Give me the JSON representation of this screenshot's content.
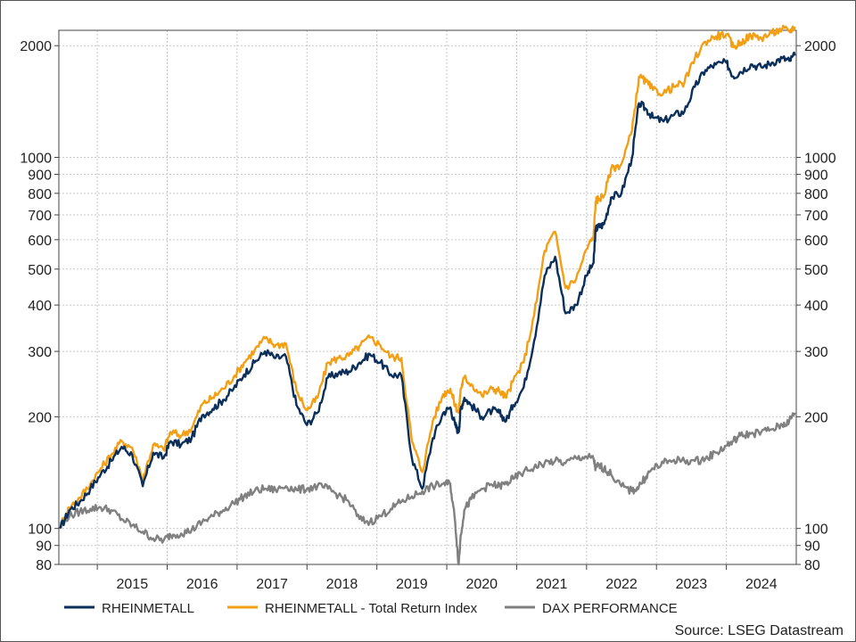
{
  "chart_data": {
    "type": "line",
    "yscale": "log",
    "ylim": [
      80,
      2200
    ],
    "y_ticks": [
      80,
      90,
      100,
      200,
      300,
      400,
      500,
      600,
      700,
      800,
      900,
      1000,
      2000
    ],
    "y_tick_labels": [
      "80",
      "90",
      "100",
      "200",
      "300",
      "400",
      "500",
      "600",
      "700",
      "800",
      "900",
      "1000",
      "2000"
    ],
    "xlim": [
      2014.45,
      2025.0
    ],
    "x_tick_labels": [
      "2015",
      "2016",
      "2017",
      "2018",
      "2019",
      "2020",
      "2021",
      "2022",
      "2023",
      "2024"
    ],
    "grid": true,
    "legend_position": "bottom",
    "source": "Source: LSEG Datastream",
    "series": [
      {
        "name": "RHEINMETALL",
        "color": "#0b2f5b",
        "x": [
          2014.47,
          2014.6,
          2014.75,
          2014.9,
          2015.05,
          2015.2,
          2015.35,
          2015.5,
          2015.65,
          2015.8,
          2015.95,
          2016.05,
          2016.2,
          2016.35,
          2016.5,
          2016.65,
          2016.8,
          2016.95,
          2017.1,
          2017.25,
          2017.4,
          2017.55,
          2017.7,
          2017.85,
          2018.0,
          2018.15,
          2018.3,
          2018.45,
          2018.6,
          2018.75,
          2018.9,
          2019.05,
          2019.2,
          2019.35,
          2019.5,
          2019.65,
          2019.8,
          2019.95,
          2020.05,
          2020.12,
          2020.17,
          2020.2,
          2020.25,
          2020.35,
          2020.5,
          2020.65,
          2020.75,
          2020.85,
          2020.95,
          2021.1,
          2021.25,
          2021.4,
          2021.55,
          2021.7,
          2021.85,
          2022.0,
          2022.1,
          2022.13,
          2022.17,
          2022.25,
          2022.35,
          2022.5,
          2022.65,
          2022.75,
          2022.85,
          2022.95,
          2023.1,
          2023.25,
          2023.4,
          2023.55,
          2023.7,
          2023.85,
          2024.0,
          2024.1,
          2024.2,
          2024.35,
          2024.5,
          2024.65,
          2024.8,
          2024.9,
          2024.98
        ],
        "values": [
          100,
          112,
          118,
          128,
          140,
          152,
          166,
          158,
          130,
          160,
          155,
          172,
          168,
          175,
          202,
          210,
          222,
          238,
          260,
          280,
          300,
          288,
          290,
          215,
          190,
          205,
          255,
          262,
          265,
          280,
          295,
          280,
          260,
          258,
          155,
          128,
          175,
          205,
          212,
          190,
          182,
          210,
          225,
          215,
          200,
          208,
          205,
          195,
          215,
          240,
          320,
          480,
          540,
          380,
          400,
          480,
          520,
          640,
          650,
          660,
          780,
          800,
          1000,
          1400,
          1350,
          1280,
          1250,
          1300,
          1330,
          1550,
          1720,
          1780,
          1800,
          1650,
          1700,
          1780,
          1750,
          1800,
          1850,
          1820,
          1880
        ]
      },
      {
        "name": "RHEINMETALL - Total Return Index",
        "color": "#f29f16",
        "x": [
          2014.47,
          2014.6,
          2014.75,
          2014.9,
          2015.05,
          2015.2,
          2015.35,
          2015.5,
          2015.65,
          2015.8,
          2015.95,
          2016.05,
          2016.2,
          2016.35,
          2016.5,
          2016.65,
          2016.8,
          2016.95,
          2017.1,
          2017.25,
          2017.4,
          2017.55,
          2017.7,
          2017.85,
          2018.0,
          2018.15,
          2018.3,
          2018.45,
          2018.6,
          2018.75,
          2018.9,
          2019.05,
          2019.2,
          2019.35,
          2019.5,
          2019.65,
          2019.8,
          2019.95,
          2020.05,
          2020.12,
          2020.17,
          2020.2,
          2020.25,
          2020.35,
          2020.5,
          2020.65,
          2020.75,
          2020.85,
          2020.95,
          2021.1,
          2021.25,
          2021.4,
          2021.55,
          2021.7,
          2021.85,
          2022.0,
          2022.1,
          2022.13,
          2022.17,
          2022.25,
          2022.35,
          2022.5,
          2022.65,
          2022.75,
          2022.85,
          2022.95,
          2023.1,
          2023.25,
          2023.4,
          2023.55,
          2023.7,
          2023.85,
          2024.0,
          2024.1,
          2024.2,
          2024.35,
          2024.5,
          2024.65,
          2024.8,
          2024.9,
          2024.98
        ],
        "values": [
          101,
          114,
          121,
          132,
          145,
          158,
          172,
          165,
          136,
          168,
          163,
          182,
          178,
          186,
          216,
          225,
          238,
          256,
          280,
          302,
          325,
          312,
          315,
          235,
          208,
          225,
          280,
          288,
          292,
          310,
          327,
          312,
          290,
          288,
          172,
          142,
          195,
          230,
          238,
          215,
          205,
          238,
          255,
          245,
          228,
          238,
          235,
          225,
          250,
          280,
          375,
          560,
          630,
          445,
          470,
          565,
          615,
          760,
          775,
          790,
          930,
          960,
          1180,
          1650,
          1600,
          1520,
          1490,
          1550,
          1590,
          1850,
          2050,
          2120,
          2150,
          1980,
          2040,
          2130,
          2100,
          2160,
          2220,
          2190,
          2250
        ]
      },
      {
        "name": "DAX PERFORMANCE",
        "color": "#808080",
        "x": [
          2014.47,
          2014.6,
          2014.75,
          2014.9,
          2015.05,
          2015.2,
          2015.35,
          2015.5,
          2015.65,
          2015.8,
          2015.95,
          2016.05,
          2016.2,
          2016.35,
          2016.5,
          2016.65,
          2016.8,
          2016.95,
          2017.1,
          2017.25,
          2017.4,
          2017.55,
          2017.7,
          2017.85,
          2018.0,
          2018.15,
          2018.3,
          2018.45,
          2018.6,
          2018.75,
          2018.9,
          2019.05,
          2019.2,
          2019.35,
          2019.5,
          2019.65,
          2019.8,
          2019.95,
          2020.05,
          2020.12,
          2020.17,
          2020.2,
          2020.25,
          2020.35,
          2020.5,
          2020.65,
          2020.75,
          2020.85,
          2020.95,
          2021.1,
          2021.25,
          2021.4,
          2021.55,
          2021.7,
          2021.85,
          2022.0,
          2022.1,
          2022.13,
          2022.17,
          2022.25,
          2022.35,
          2022.5,
          2022.65,
          2022.75,
          2022.85,
          2022.95,
          2023.1,
          2023.25,
          2023.4,
          2023.55,
          2023.7,
          2023.85,
          2024.0,
          2024.1,
          2024.2,
          2024.35,
          2024.5,
          2024.65,
          2024.8,
          2024.9,
          2024.98
        ],
        "values": [
          104,
          108,
          111,
          113,
          114,
          112,
          106,
          102,
          98,
          94,
          93,
          96,
          97,
          99,
          104,
          108,
          112,
          117,
          122,
          126,
          128,
          127,
          130,
          127,
          128,
          130,
          128,
          123,
          118,
          106,
          104,
          108,
          113,
          118,
          122,
          126,
          130,
          132,
          132,
          104,
          80,
          96,
          112,
          120,
          128,
          131,
          130,
          132,
          136,
          142,
          146,
          150,
          152,
          150,
          155,
          156,
          154,
          145,
          148,
          145,
          140,
          130,
          126,
          130,
          138,
          145,
          150,
          153,
          152,
          152,
          154,
          160,
          167,
          172,
          178,
          180,
          182,
          185,
          190,
          195,
          205
        ]
      }
    ]
  }
}
